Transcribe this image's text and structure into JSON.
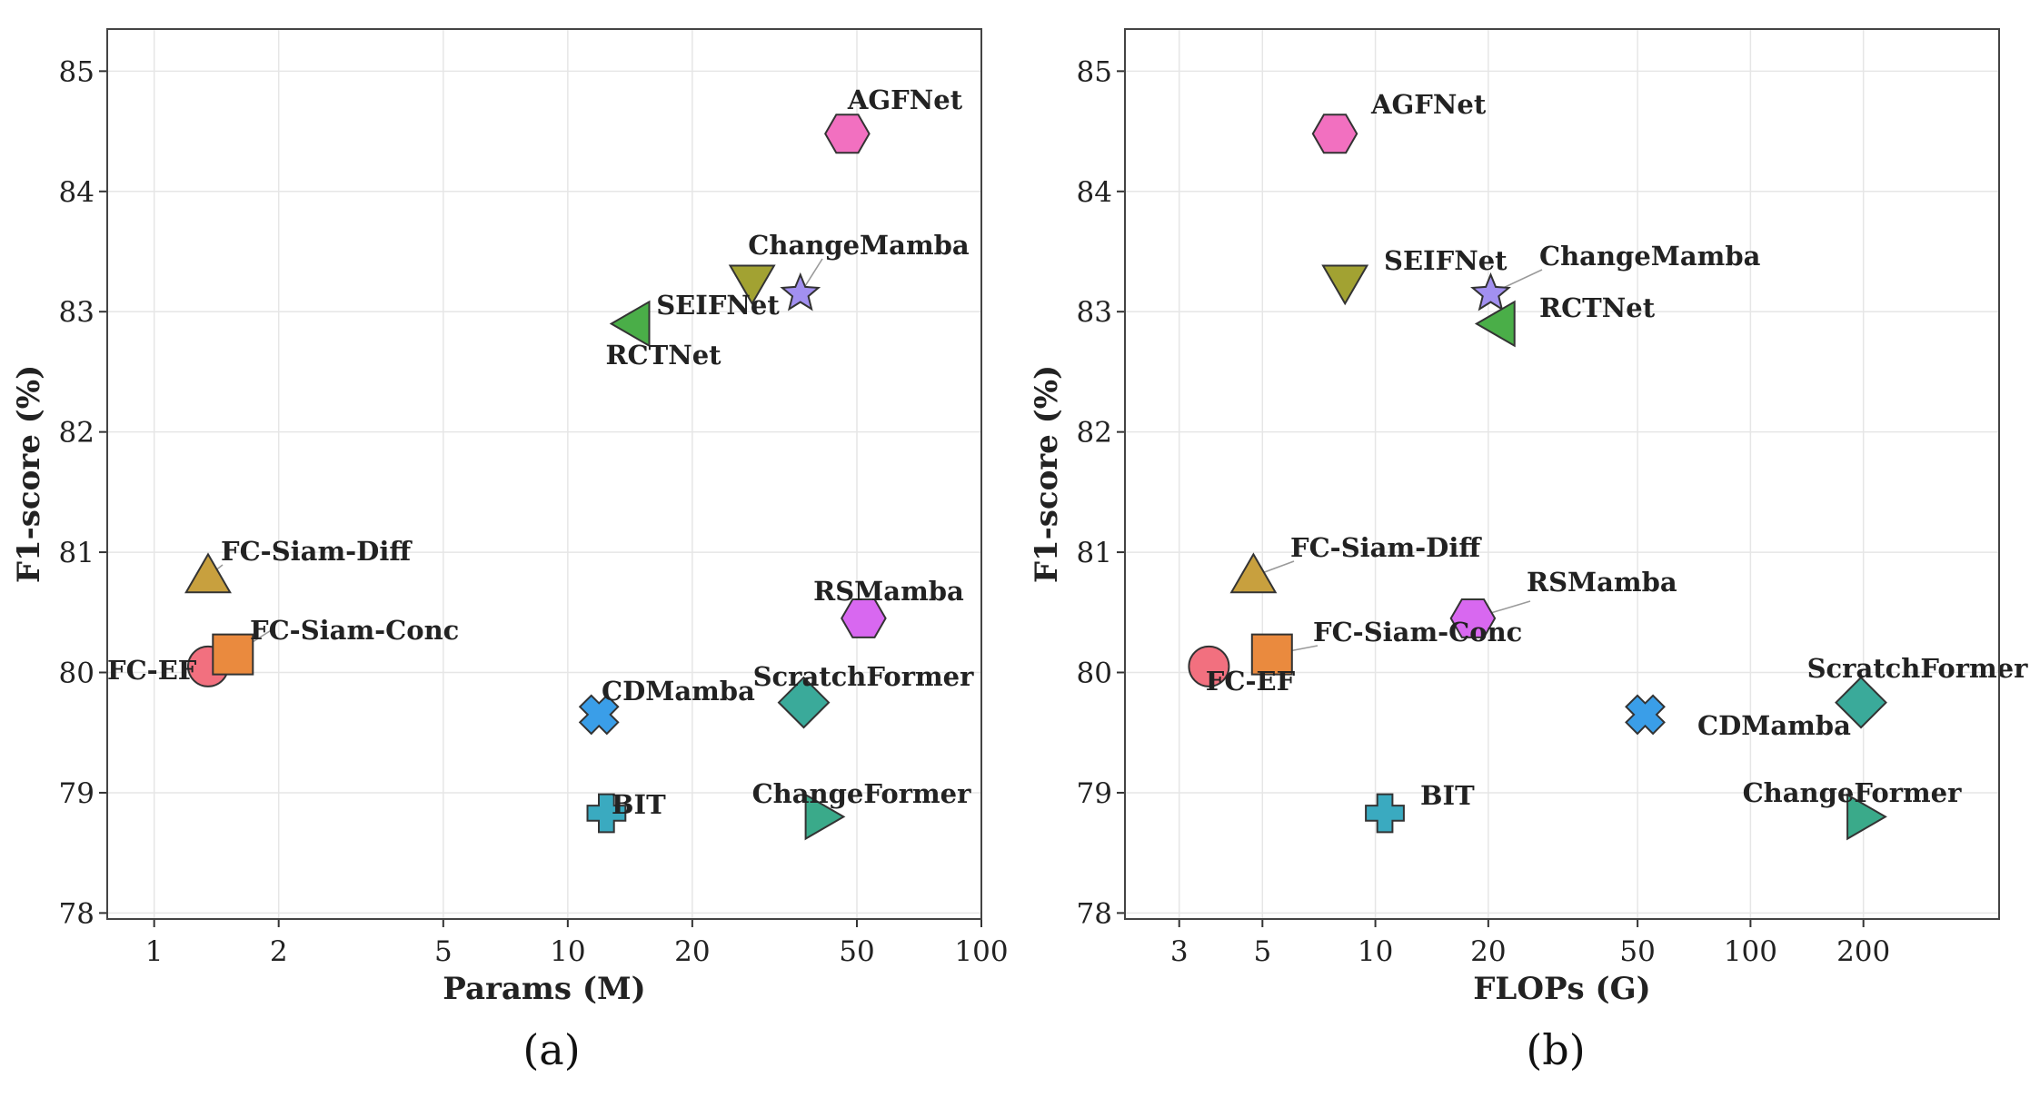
{
  "chart_data": [
    {
      "type": "scatter",
      "panel": "a",
      "caption": "(a)",
      "xlabel": "Params (M)",
      "ylabel": "F1-score (%)",
      "xscale": "log",
      "xlim": [
        0.77,
        100
      ],
      "ylim": [
        77.95,
        85.35
      ],
      "xticks": [
        1,
        2,
        5,
        10,
        20,
        50,
        100
      ],
      "yticks": [
        78,
        79,
        80,
        81,
        82,
        83,
        84,
        85
      ],
      "grid": true,
      "points": [
        {
          "name": "FC-EF",
          "x": 1.35,
          "y": 80.05,
          "marker": "circle",
          "color": "#f2707f"
        },
        {
          "name": "FC-Siam-Conc",
          "x": 1.55,
          "y": 80.15,
          "marker": "square",
          "color": "#ea8a3e"
        },
        {
          "name": "FC-Siam-Diff",
          "x": 1.35,
          "y": 80.8,
          "marker": "triangle-up",
          "color": "#c8a03e"
        },
        {
          "name": "CDMamba",
          "x": 11.9,
          "y": 79.65,
          "marker": "x",
          "color": "#3a9ee8"
        },
        {
          "name": "BIT",
          "x": 12.4,
          "y": 78.83,
          "marker": "plus",
          "color": "#3aaac0"
        },
        {
          "name": "RCTNet",
          "x": 14.4,
          "y": 82.9,
          "marker": "triangle-left",
          "color": "#4aae48"
        },
        {
          "name": "SEIFNet",
          "x": 27.9,
          "y": 83.25,
          "marker": "triangle-down",
          "color": "#a2a232"
        },
        {
          "name": "ChangeMamba",
          "x": 36.5,
          "y": 83.15,
          "marker": "star",
          "color": "#a290f0"
        },
        {
          "name": "ScratchFormer",
          "x": 37.2,
          "y": 79.75,
          "marker": "diamond",
          "color": "#3aaa9a"
        },
        {
          "name": "ChangeFormer",
          "x": 41.1,
          "y": 78.8,
          "marker": "triangle-right",
          "color": "#3aaa8a"
        },
        {
          "name": "AGFNet",
          "x": 47.4,
          "y": 84.48,
          "marker": "hexagon",
          "color": "#f270c0"
        },
        {
          "name": "RSMamba",
          "x": 51.9,
          "y": 80.45,
          "marker": "hexagon",
          "color": "#d868f0"
        }
      ]
    },
    {
      "type": "scatter",
      "panel": "b",
      "caption": "(b)",
      "xlabel": "FLOPs (G)",
      "ylabel": "F1-score (%)",
      "xscale": "log",
      "xlim": [
        2.15,
        460
      ],
      "ylim": [
        77.95,
        85.35
      ],
      "xticks": [
        3,
        5,
        10,
        20,
        50,
        100,
        200
      ],
      "yticks": [
        78,
        79,
        80,
        81,
        82,
        83,
        84,
        85
      ],
      "grid": true,
      "points": [
        {
          "name": "FC-EF",
          "x": 3.6,
          "y": 80.05,
          "marker": "circle",
          "color": "#f2707f"
        },
        {
          "name": "FC-Siam-Diff",
          "x": 4.73,
          "y": 80.8,
          "marker": "triangle-up",
          "color": "#c8a03e"
        },
        {
          "name": "FC-Siam-Conc",
          "x": 5.3,
          "y": 80.15,
          "marker": "square",
          "color": "#ea8a3e"
        },
        {
          "name": "AGFNet",
          "x": 7.8,
          "y": 84.48,
          "marker": "hexagon",
          "color": "#f270c0"
        },
        {
          "name": "SEIFNet",
          "x": 8.3,
          "y": 83.25,
          "marker": "triangle-down",
          "color": "#a2a232"
        },
        {
          "name": "BIT",
          "x": 10.6,
          "y": 78.83,
          "marker": "plus",
          "color": "#3aaac0"
        },
        {
          "name": "RSMamba",
          "x": 18.2,
          "y": 80.45,
          "marker": "hexagon",
          "color": "#d868f0"
        },
        {
          "name": "ChangeMamba",
          "x": 20.3,
          "y": 83.15,
          "marker": "star",
          "color": "#a290f0"
        },
        {
          "name": "RCTNet",
          "x": 21.3,
          "y": 82.9,
          "marker": "triangle-left",
          "color": "#4aae48"
        },
        {
          "name": "CDMamba",
          "x": 52.4,
          "y": 79.65,
          "marker": "x",
          "color": "#3a9ee8"
        },
        {
          "name": "ScratchFormer",
          "x": 197,
          "y": 79.75,
          "marker": "diamond",
          "color": "#3aaa9a"
        },
        {
          "name": "ChangeFormer",
          "x": 200,
          "y": 78.8,
          "marker": "triangle-right",
          "color": "#3aaa8a"
        }
      ]
    }
  ]
}
